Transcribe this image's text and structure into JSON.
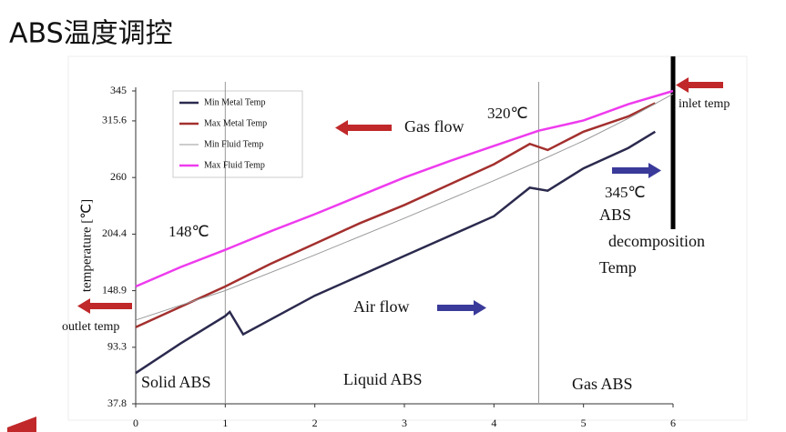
{
  "chart_data": {
    "type": "line",
    "title": "ABS温度调控",
    "y_label": "temperature [℃]",
    "xlim": [
      0,
      6
    ],
    "xticks": [
      0,
      1,
      2,
      3,
      4,
      5,
      6
    ],
    "ylim": [
      37.8,
      345
    ],
    "yticks": [
      37.8,
      93.3,
      148.9,
      204.4,
      260,
      315.6,
      345
    ],
    "series": [
      {
        "name": "Min Metal Temp",
        "color": "#2b2a4e",
        "width": 2.5,
        "x": [
          0,
          0.5,
          1,
          1.05,
          1.2,
          2,
          3,
          4,
          4.4,
          4.6,
          5,
          5.5,
          5.8
        ],
        "values": [
          68,
          97,
          124,
          128,
          106,
          144,
          183,
          222,
          250,
          247,
          269,
          289,
          305
        ]
      },
      {
        "name": "Max Metal Temp",
        "color": "#a3302e",
        "width": 2.5,
        "x": [
          0,
          0.5,
          1,
          1.5,
          2,
          2.5,
          3,
          3.5,
          4,
          4.4,
          4.6,
          5,
          5.5,
          5.8
        ],
        "values": [
          113,
          133,
          153,
          175,
          195,
          215,
          233,
          253,
          273,
          293,
          287,
          305,
          320,
          333
        ]
      },
      {
        "name": "Min Fluid Temp",
        "color": "#9a9a9a",
        "width": 1,
        "x": [
          0,
          1,
          2,
          3,
          4,
          4.5,
          5,
          5.5,
          6
        ],
        "values": [
          120,
          149,
          184,
          220,
          257,
          276,
          296,
          318,
          342
        ]
      },
      {
        "name": "Max Fluid Temp",
        "color": "#ee3bee",
        "width": 2.5,
        "x": [
          0,
          0.5,
          1,
          1.5,
          2,
          2.5,
          3,
          3.5,
          4,
          4.5,
          5,
          5.5,
          6
        ],
        "values": [
          153,
          172,
          189,
          207,
          224,
          242,
          260,
          276,
          291,
          306,
          316,
          332,
          345
        ]
      }
    ],
    "annotations": [
      "Gas flow",
      "320℃",
      "148℃",
      "345℃",
      "ABS",
      "decomposition",
      "Temp",
      "Air flow",
      "outlet temp",
      "inlet temp",
      "Solid ABS",
      "Liquid ABS",
      "Gas ABS"
    ]
  }
}
